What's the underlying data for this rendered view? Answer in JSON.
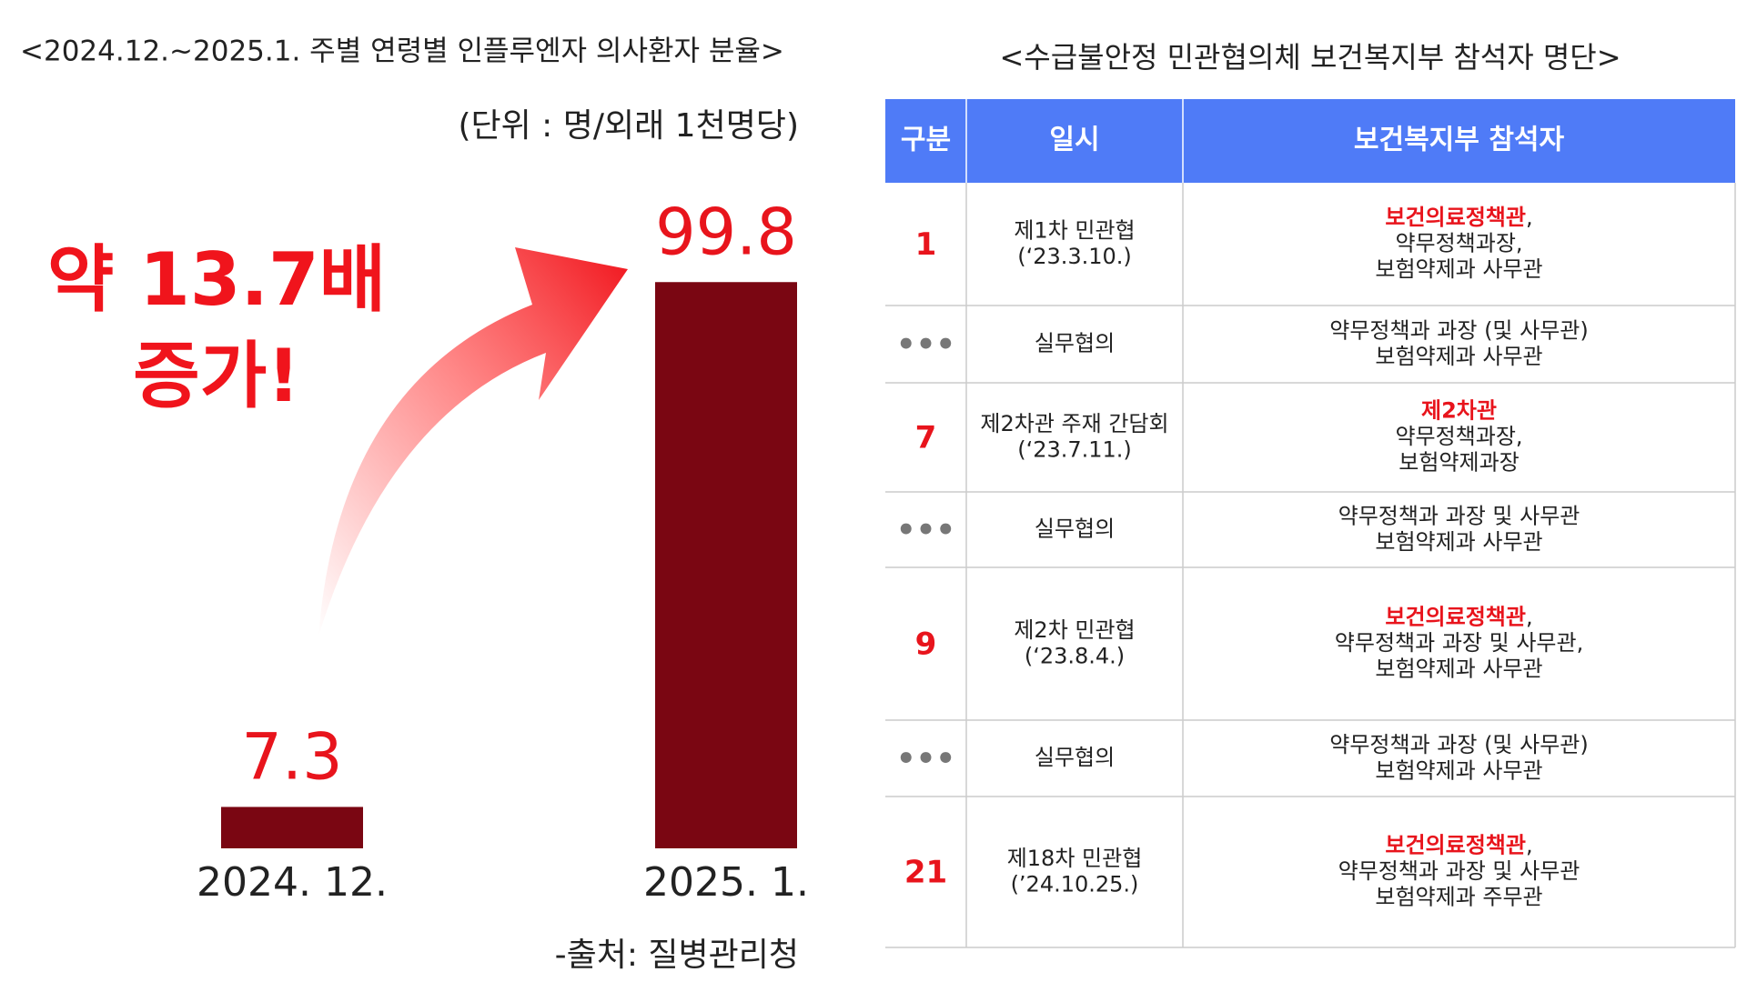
{
  "chart_data": {
    "type": "bar",
    "title": "<2024.12.~2025.1. 주별 연령별 인플루엔자 의사환자 분율>",
    "subtitle": "(단위 : 명/외래 1천명당)",
    "annotation": [
      "약 13.7배",
      "증가!"
    ],
    "source": "-출처: 질병관리청",
    "categories": [
      "2024. 12.",
      "2025. 1."
    ],
    "values": [
      7.3,
      99.8
    ],
    "color": "#7a0612",
    "label_color": "#e8141c",
    "ylim": [
      0,
      100
    ]
  },
  "table": {
    "title": "<수급불안정 민관협의체 보건복지부 참석자 명단>",
    "header": [
      "구분",
      "일시",
      "보건복지부 참석자"
    ],
    "header_color": "#4f7bf7",
    "rows": [
      {
        "no": "1",
        "no_color": "#e8141c",
        "date": [
          "제1차 민관협",
          "(‘23.3.10.)"
        ],
        "attendees": [
          [
            {
              "text": "보건의료정책관",
              "color": "#e8141c"
            },
            {
              "text": ",",
              "color": "#222222"
            }
          ],
          [
            {
              "text": "약무정책과장,",
              "color": "#222222"
            }
          ],
          [
            {
              "text": "보험약제과 사무관",
              "color": "#222222"
            }
          ]
        ]
      },
      {
        "no": "•••",
        "no_color": "#777777",
        "date": [
          "실무협의"
        ],
        "attendees": [
          [
            {
              "text": "약무정책과 과장 (및 사무관)",
              "color": "#222222"
            }
          ],
          [
            {
              "text": "보험약제과 사무관",
              "color": "#222222"
            }
          ]
        ]
      },
      {
        "no": "7",
        "no_color": "#e8141c",
        "date": [
          "제2차관 주재 간담회",
          "(‘23.7.11.)"
        ],
        "attendees": [
          [
            {
              "text": "제2차관",
              "color": "#e8141c"
            }
          ],
          [
            {
              "text": "약무정책과장,",
              "color": "#222222"
            }
          ],
          [
            {
              "text": "보험약제과장",
              "color": "#222222"
            }
          ]
        ]
      },
      {
        "no": "•••",
        "no_color": "#777777",
        "date": [
          "실무협의"
        ],
        "attendees": [
          [
            {
              "text": "약무정책과 과장 및 사무관",
              "color": "#222222"
            }
          ],
          [
            {
              "text": "보험약제과 사무관",
              "color": "#222222"
            }
          ]
        ]
      },
      {
        "no": "9",
        "no_color": "#e8141c",
        "date": [
          "제2차 민관협",
          "(‘23.8.4.)"
        ],
        "attendees": [
          [
            {
              "text": "보건의료정책관",
              "color": "#e8141c"
            },
            {
              "text": ",",
              "color": "#222222"
            }
          ],
          [
            {
              "text": "약무정책과 과장 및 사무관,",
              "color": "#222222"
            }
          ],
          [
            {
              "text": "보험약제과 사무관",
              "color": "#222222"
            }
          ]
        ]
      },
      {
        "no": "•••",
        "no_color": "#777777",
        "date": [
          "실무협의"
        ],
        "attendees": [
          [
            {
              "text": "약무정책과 과장 (및 사무관)",
              "color": "#222222"
            }
          ],
          [
            {
              "text": "보험약제과 사무관",
              "color": "#222222"
            }
          ]
        ]
      },
      {
        "no": "21",
        "no_color": "#e8141c",
        "date": [
          "제18차 민관협",
          "(’24.10.25.)"
        ],
        "attendees": [
          [
            {
              "text": "보건의료정책관",
              "color": "#e8141c"
            },
            {
              "text": ",",
              "color": "#222222"
            }
          ],
          [
            {
              "text": "약무정책과 과장 및 사무관",
              "color": "#222222"
            }
          ],
          [
            {
              "text": "보험약제과 주무관",
              "color": "#222222"
            }
          ]
        ]
      }
    ]
  }
}
